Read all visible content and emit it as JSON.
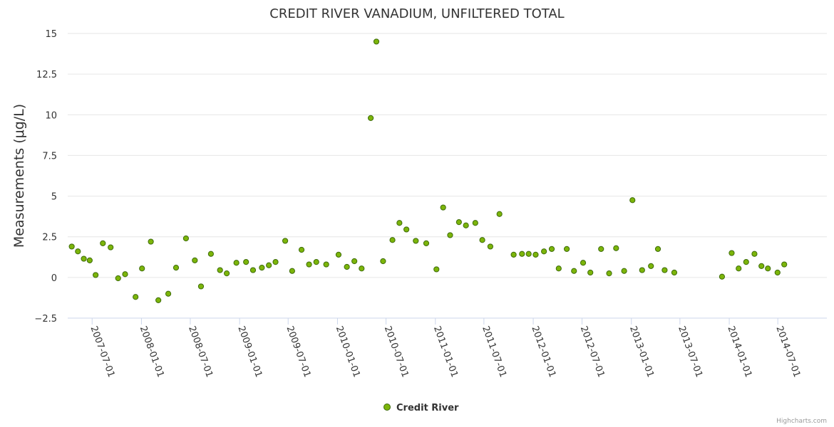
{
  "chart_data": {
    "type": "scatter",
    "title": "CREDIT RIVER VANADIUM, UNFILTERED TOTAL",
    "ylabel": "Measurements (μg/L)",
    "xlabel": "",
    "ylim": [
      -2.5,
      15
    ],
    "yticks": [
      -2.5,
      0,
      2.5,
      5,
      7.5,
      10,
      12.5,
      15
    ],
    "ytick_labels": [
      "−2.5",
      "0",
      "2.5",
      "5",
      "7.5",
      "10",
      "12.5",
      "15"
    ],
    "xlim": [
      "2007-04-01",
      "2014-12-31"
    ],
    "xticks": [
      "2007-07-01",
      "2008-01-01",
      "2008-07-01",
      "2009-01-01",
      "2009-07-01",
      "2010-01-01",
      "2010-07-01",
      "2011-01-01",
      "2011-07-01",
      "2012-01-01",
      "2012-07-01",
      "2013-01-01",
      "2013-07-01",
      "2014-01-01",
      "2014-07-01"
    ],
    "grid": true,
    "legend": "bottom-center",
    "series": [
      {
        "name": "Credit River",
        "color": "#7cb50a",
        "points": [
          [
            "2007-04-16",
            1.9
          ],
          [
            "2007-05-09",
            1.6
          ],
          [
            "2007-05-31",
            1.15
          ],
          [
            "2007-06-22",
            1.05
          ],
          [
            "2007-07-14",
            0.15
          ],
          [
            "2007-08-10",
            2.1
          ],
          [
            "2007-09-08",
            1.85
          ],
          [
            "2007-10-06",
            -0.05
          ],
          [
            "2007-11-01",
            0.2
          ],
          [
            "2007-12-10",
            -1.2
          ],
          [
            "2008-01-03",
            0.55
          ],
          [
            "2008-02-05",
            2.2
          ],
          [
            "2008-03-04",
            -1.4
          ],
          [
            "2008-04-10",
            -1.0
          ],
          [
            "2008-05-09",
            0.6
          ],
          [
            "2008-06-15",
            2.4
          ],
          [
            "2008-07-18",
            1.05
          ],
          [
            "2008-08-10",
            -0.55
          ],
          [
            "2008-09-16",
            1.45
          ],
          [
            "2008-10-20",
            0.45
          ],
          [
            "2008-11-14",
            0.25
          ],
          [
            "2008-12-20",
            0.9
          ],
          [
            "2009-01-25",
            0.95
          ],
          [
            "2009-02-20",
            0.45
          ],
          [
            "2009-03-25",
            0.6
          ],
          [
            "2009-04-20",
            0.75
          ],
          [
            "2009-05-15",
            0.95
          ],
          [
            "2009-06-20",
            2.25
          ],
          [
            "2009-07-16",
            0.4
          ],
          [
            "2009-08-20",
            1.7
          ],
          [
            "2009-09-17",
            0.8
          ],
          [
            "2009-10-14",
            0.95
          ],
          [
            "2009-11-20",
            0.8
          ],
          [
            "2010-01-05",
            1.4
          ],
          [
            "2010-02-05",
            0.65
          ],
          [
            "2010-03-05",
            1.0
          ],
          [
            "2010-04-01",
            0.55
          ],
          [
            "2010-05-05",
            9.8
          ],
          [
            "2010-05-26",
            14.5
          ],
          [
            "2010-06-20",
            1.0
          ],
          [
            "2010-07-25",
            2.3
          ],
          [
            "2010-08-20",
            3.35
          ],
          [
            "2010-09-15",
            2.95
          ],
          [
            "2010-10-20",
            2.25
          ],
          [
            "2010-11-28",
            2.1
          ],
          [
            "2011-01-05",
            0.5
          ],
          [
            "2011-01-30",
            4.3
          ],
          [
            "2011-02-25",
            2.6
          ],
          [
            "2011-03-30",
            3.4
          ],
          [
            "2011-04-25",
            3.2
          ],
          [
            "2011-05-30",
            3.35
          ],
          [
            "2011-06-25",
            2.3
          ],
          [
            "2011-07-25",
            1.9
          ],
          [
            "2011-08-28",
            3.9
          ],
          [
            "2011-10-20",
            1.4
          ],
          [
            "2011-11-20",
            1.45
          ],
          [
            "2011-12-15",
            1.45
          ],
          [
            "2012-01-10",
            1.4
          ],
          [
            "2012-02-10",
            1.6
          ],
          [
            "2012-03-10",
            1.75
          ],
          [
            "2012-04-05",
            0.55
          ],
          [
            "2012-05-05",
            1.75
          ],
          [
            "2012-06-01",
            0.4
          ],
          [
            "2012-07-05",
            0.9
          ],
          [
            "2012-08-01",
            0.3
          ],
          [
            "2012-09-10",
            1.75
          ],
          [
            "2012-10-10",
            0.25
          ],
          [
            "2012-11-05",
            1.8
          ],
          [
            "2012-12-05",
            0.4
          ],
          [
            "2013-01-05",
            4.75
          ],
          [
            "2013-02-10",
            0.45
          ],
          [
            "2013-03-15",
            0.7
          ],
          [
            "2013-04-10",
            1.75
          ],
          [
            "2013-05-05",
            0.45
          ],
          [
            "2013-06-10",
            0.3
          ],
          [
            "2013-12-05",
            0.05
          ],
          [
            "2014-01-10",
            1.5
          ],
          [
            "2014-02-05",
            0.55
          ],
          [
            "2014-03-05",
            0.95
          ],
          [
            "2014-04-05",
            1.45
          ],
          [
            "2014-05-01",
            0.7
          ],
          [
            "2014-05-25",
            0.55
          ],
          [
            "2014-06-30",
            0.3
          ],
          [
            "2014-07-25",
            0.8
          ]
        ]
      }
    ]
  },
  "credits": "Highcharts.com"
}
